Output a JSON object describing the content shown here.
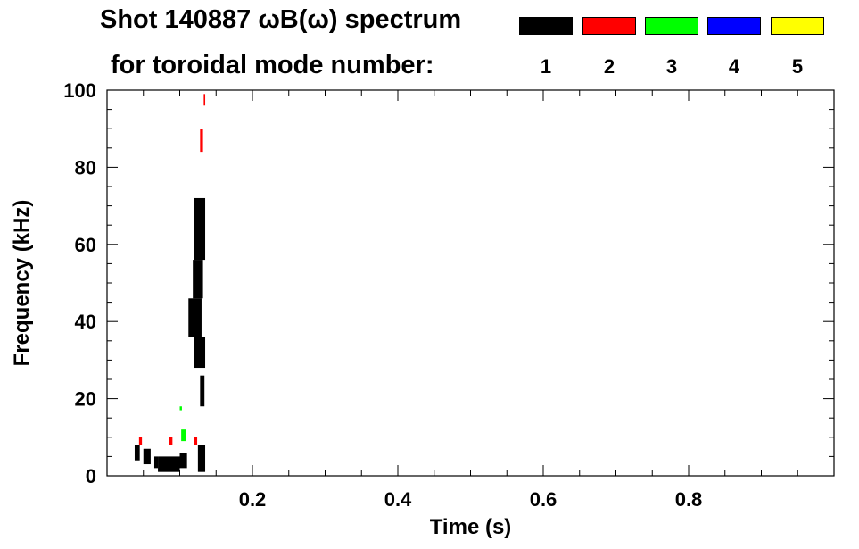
{
  "chart_data": {
    "type": "heatmap",
    "title_line1": "Shot 140887 ωB(ω) spectrum",
    "title_line2": "for toroidal mode number:",
    "xlabel": "Time (s)",
    "ylabel": "Frequency (kHz)",
    "xlim": [
      0.0,
      1.0
    ],
    "ylim": [
      0,
      100
    ],
    "x_ticks": [
      "0.2",
      "0.4",
      "0.6",
      "0.8"
    ],
    "y_ticks": [
      "0",
      "20",
      "40",
      "60",
      "80",
      "100"
    ],
    "legend": [
      {
        "label": "1",
        "color": "#000000"
      },
      {
        "label": "2",
        "color": "#ff0000"
      },
      {
        "label": "3",
        "color": "#00ff00"
      },
      {
        "label": "4",
        "color": "#0000ff"
      },
      {
        "label": "5",
        "color": "#ffff00"
      }
    ],
    "features": [
      {
        "mode": 1,
        "t": [
          0.038,
          0.045
        ],
        "f": [
          4,
          8
        ]
      },
      {
        "mode": 1,
        "t": [
          0.05,
          0.06
        ],
        "f": [
          3,
          7
        ]
      },
      {
        "mode": 1,
        "t": [
          0.065,
          0.07
        ],
        "f": [
          2,
          5
        ]
      },
      {
        "mode": 1,
        "t": [
          0.07,
          0.1
        ],
        "f": [
          1,
          5
        ]
      },
      {
        "mode": 1,
        "t": [
          0.1,
          0.11
        ],
        "f": [
          2,
          6
        ]
      },
      {
        "mode": 1,
        "t": [
          0.125,
          0.135
        ],
        "f": [
          1,
          8
        ]
      },
      {
        "mode": 1,
        "t": [
          0.112,
          0.13
        ],
        "f": [
          36,
          46
        ]
      },
      {
        "mode": 1,
        "t": [
          0.118,
          0.132
        ],
        "f": [
          46,
          56
        ]
      },
      {
        "mode": 1,
        "t": [
          0.12,
          0.135
        ],
        "f": [
          56,
          72
        ]
      },
      {
        "mode": 1,
        "t": [
          0.12,
          0.135
        ],
        "f": [
          28,
          36
        ]
      },
      {
        "mode": 1,
        "t": [
          0.128,
          0.134
        ],
        "f": [
          18,
          26
        ]
      },
      {
        "mode": 2,
        "t": [
          0.044,
          0.048
        ],
        "f": [
          8,
          10
        ]
      },
      {
        "mode": 2,
        "t": [
          0.085,
          0.09
        ],
        "f": [
          8,
          10
        ]
      },
      {
        "mode": 2,
        "t": [
          0.12,
          0.124
        ],
        "f": [
          8,
          10
        ]
      },
      {
        "mode": 2,
        "t": [
          0.128,
          0.132
        ],
        "f": [
          84,
          90
        ]
      },
      {
        "mode": 2,
        "t": [
          0.133,
          0.135
        ],
        "f": [
          96,
          99
        ]
      },
      {
        "mode": 3,
        "t": [
          0.102,
          0.108
        ],
        "f": [
          9,
          12
        ]
      },
      {
        "mode": 3,
        "t": [
          0.1,
          0.103
        ],
        "f": [
          17,
          18
        ]
      }
    ]
  }
}
